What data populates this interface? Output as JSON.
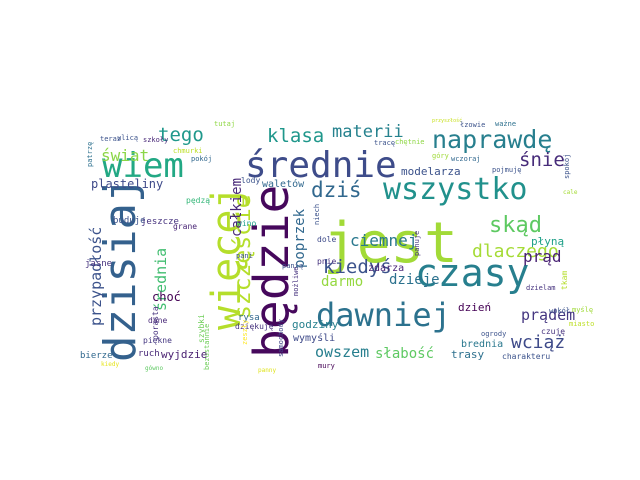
{
  "words": [
    {
      "text": "jest",
      "color": "#a2da37"
    },
    {
      "text": "będzie",
      "color": "#46085c"
    },
    {
      "text": "średnie",
      "color": "#3e4c8a"
    },
    {
      "text": "dzisiaj",
      "color": "#34618d"
    },
    {
      "text": "więcej",
      "color": "#b5de2b"
    },
    {
      "text": "czasy",
      "color": "#277f8e"
    },
    {
      "text": "wiem",
      "color": "#22a884"
    },
    {
      "text": "dawniej",
      "color": "#2c728e"
    },
    {
      "text": "wszystko",
      "color": "#21918c"
    },
    {
      "text": "naprawdę",
      "color": "#277f8e"
    },
    {
      "text": "szczęście",
      "color": "#b5de2b"
    },
    {
      "text": "dziś",
      "color": "#31688e"
    },
    {
      "text": "skąd",
      "color": "#5ec962"
    },
    {
      "text": "klasa",
      "color": "#1f978b"
    },
    {
      "text": "tego",
      "color": "#1f988b"
    },
    {
      "text": "kiedyś",
      "color": "#3b528b"
    },
    {
      "text": "dlaczego",
      "color": "#a5db36"
    },
    {
      "text": "ciemnej",
      "color": "#2a788e"
    },
    {
      "text": "materii",
      "color": "#26828e"
    },
    {
      "text": "świat",
      "color": "#8bd646"
    },
    {
      "text": "przypadłość",
      "color": "#3b528b"
    },
    {
      "text": "średnia",
      "color": "#42be71"
    },
    {
      "text": "poprzek",
      "color": "#31688e"
    },
    {
      "text": "całkiem",
      "color": "#482878"
    },
    {
      "text": "śnie",
      "color": "#472c7a"
    },
    {
      "text": "prąd",
      "color": "#482173"
    },
    {
      "text": "wciąż",
      "color": "#3e4a89"
    },
    {
      "text": "owszem",
      "color": "#277f8e"
    },
    {
      "text": "darmo",
      "color": "#95d840"
    },
    {
      "text": "dzieje",
      "color": "#2c728e"
    },
    {
      "text": "prądem",
      "color": "#453781"
    },
    {
      "text": "słabość",
      "color": "#5ec962"
    },
    {
      "text": "plasteliny",
      "color": "#3e4a89"
    },
    {
      "text": "godziny",
      "color": "#27808e"
    },
    {
      "text": "modelarza",
      "color": "#3b528b"
    },
    {
      "text": "płyną",
      "color": "#1fa088"
    },
    {
      "text": "dzień",
      "color": "#440154"
    },
    {
      "text": "choć",
      "color": "#440154"
    },
    {
      "text": "zdarza",
      "color": "#482475"
    },
    {
      "text": "wyjdzie",
      "color": "#481f70"
    },
    {
      "text": "trasy",
      "color": "#2d708e"
    },
    {
      "text": "waletów",
      "color": "#31688e"
    },
    {
      "text": "brednia",
      "color": "#2a788e"
    },
    {
      "text": "wymyśli",
      "color": "#3e4a89"
    },
    {
      "text": "ruch",
      "color": "#482878"
    },
    {
      "text": "bierze",
      "color": "#31688e"
    },
    {
      "text": "jasne",
      "color": "#46327e"
    },
    {
      "text": "buduje",
      "color": "#3b528b"
    },
    {
      "text": "jeszcze",
      "color": "#46327e"
    },
    {
      "text": "grane",
      "color": "#482475"
    },
    {
      "text": "pędzą",
      "color": "#35b779"
    },
    {
      "text": "lody",
      "color": "#3b528b"
    },
    {
      "text": "wino",
      "color": "#1fa088"
    },
    {
      "text": "dane",
      "color": "#482878"
    },
    {
      "text": "piękne",
      "color": "#453781"
    },
    {
      "text": "szybki",
      "color": "#6ece58"
    },
    {
      "text": "porasta",
      "color": "#46327e"
    },
    {
      "text": "bezustannie",
      "color": "#6ece58"
    },
    {
      "text": "rysa",
      "color": "#31688e"
    },
    {
      "text": "dziękuję",
      "color": "#46327e"
    },
    {
      "text": "zeszły",
      "color": "#fde725"
    },
    {
      "text": "samochody",
      "color": "#404688"
    },
    {
      "text": "możliwe",
      "color": "#46327e"
    },
    {
      "text": "mury",
      "color": "#440154"
    },
    {
      "text": "panny",
      "color": "#dfe318"
    },
    {
      "text": "dole",
      "color": "#3e4a89"
    },
    {
      "text": "pnie",
      "color": "#46327e"
    },
    {
      "text": "niech",
      "color": "#3b528b"
    },
    {
      "text": "panuje",
      "color": "#46327e"
    },
    {
      "text": "dzielam",
      "color": "#46327e"
    },
    {
      "text": "tkam",
      "color": "#b5de2b"
    },
    {
      "text": "myślę",
      "color": "#a0da39"
    },
    {
      "text": "miasto",
      "color": "#bddf26"
    },
    {
      "text": "czuję",
      "color": "#46327e"
    },
    {
      "text": "wokół",
      "color": "#3b528b"
    },
    {
      "text": "charakteru",
      "color": "#3b528b"
    },
    {
      "text": "ogrody",
      "color": "#3b528b"
    },
    {
      "text": "gówno",
      "color": "#5ec962"
    },
    {
      "text": "kiedy",
      "color": "#e5e419"
    },
    {
      "text": "teraz",
      "color": "#3b528b"
    },
    {
      "text": "ulicą",
      "color": "#3b528b"
    },
    {
      "text": "szkoły",
      "color": "#482878"
    },
    {
      "text": "patrzę",
      "color": "#2d708e"
    },
    {
      "text": "chmurki",
      "color": "#bddf26"
    },
    {
      "text": "pokój",
      "color": "#31688e"
    },
    {
      "text": "tutaj",
      "color": "#8fd744"
    },
    {
      "text": "przyszłość",
      "color": "#c8e020"
    },
    {
      "text": "łzowie",
      "color": "#3b528b"
    },
    {
      "text": "ważne",
      "color": "#2d708e"
    },
    {
      "text": "tracę",
      "color": "#3b528b"
    },
    {
      "text": "chętnie",
      "color": "#8fd744"
    },
    {
      "text": "góry",
      "color": "#a0da39"
    },
    {
      "text": "wczoraj",
      "color": "#31688e"
    },
    {
      "text": "pojmuję",
      "color": "#3b528b"
    },
    {
      "text": "spokój",
      "color": "#3b528b"
    },
    {
      "text": "cale",
      "color": "#a5db36"
    },
    {
      "text": "panią",
      "color": "#3b528b"
    },
    {
      "text": "pani",
      "color": "#3b528b"
    }
  ]
}
